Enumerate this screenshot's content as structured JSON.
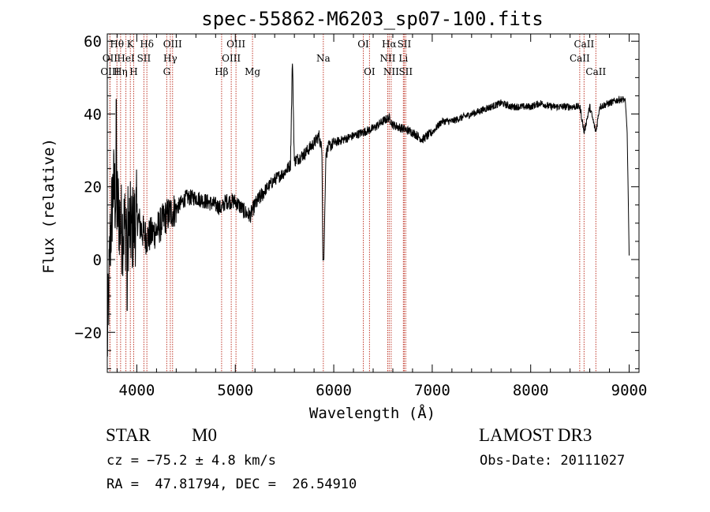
{
  "chart_data": {
    "type": "line",
    "title": "spec-55862-M6203_sp07-100.fits",
    "xlabel": "Wavelength (Å)",
    "ylabel": "Flux (relative)",
    "xlim": [
      3700,
      9100
    ],
    "ylim": [
      -31,
      62
    ],
    "xticks": [
      4000,
      5000,
      6000,
      7000,
      8000,
      9000
    ],
    "yticks": [
      -20,
      0,
      20,
      40,
      60
    ],
    "series": [
      {
        "name": "spectrum",
        "anchors_x": [
          3700,
          3730,
          3760,
          3800,
          3850,
          3900,
          3950,
          4000,
          4050,
          4100,
          4200,
          4300,
          4400,
          4500,
          4600,
          4700,
          4800,
          4861,
          4900,
          5000,
          5100,
          5150,
          5200,
          5300,
          5400,
          5500,
          5560,
          5580,
          5600,
          5700,
          5800,
          5850,
          5880,
          5890,
          5900,
          5920,
          5950,
          6000,
          6100,
          6200,
          6300,
          6400,
          6500,
          6563,
          6600,
          6700,
          6800,
          6900,
          7000,
          7100,
          7200,
          7300,
          7400,
          7500,
          7600,
          7700,
          7800,
          7900,
          8000,
          8100,
          8200,
          8300,
          8400,
          8500,
          8542,
          8600,
          8662,
          8700,
          8800,
          8900,
          8960,
          8980,
          9000
        ],
        "anchors_y": [
          -24,
          5,
          20,
          15,
          8,
          10,
          8,
          12,
          8,
          6,
          8,
          12,
          14,
          17,
          17,
          16,
          15,
          14,
          16,
          16,
          13,
          12,
          15,
          19,
          22,
          24,
          26,
          55,
          27,
          29,
          32,
          34,
          30,
          0,
          0,
          29,
          31,
          32,
          33,
          34,
          35,
          36,
          38,
          39,
          37,
          36,
          35,
          33,
          35,
          38,
          38,
          39,
          40,
          41,
          42,
          43,
          42,
          42,
          42,
          43,
          42,
          42,
          42,
          42,
          35,
          42,
          35,
          42,
          43,
          44,
          44,
          35,
          1
        ]
      }
    ],
    "spectral_lines": [
      {
        "label": "OII",
        "x": 3727,
        "row": 1
      },
      {
        "label": "OIII",
        "x": 3727,
        "row": 2
      },
      {
        "label": "Hθ",
        "x": 3798,
        "row": 0
      },
      {
        "label": "Hη",
        "x": 3835,
        "row": 2
      },
      {
        "label": "HeI",
        "x": 3889,
        "row": 1
      },
      {
        "label": "K",
        "x": 3934,
        "row": 0
      },
      {
        "label": "H",
        "x": 3968,
        "row": 2
      },
      {
        "label": "SII",
        "x": 4072,
        "row": 1
      },
      {
        "label": "Hδ",
        "x": 4102,
        "row": 0
      },
      {
        "label": "G",
        "x": 4304,
        "row": 2
      },
      {
        "label": "Hγ",
        "x": 4340,
        "row": 1
      },
      {
        "label": "OIII",
        "x": 4363,
        "row": 0
      },
      {
        "label": "Hβ",
        "x": 4861,
        "row": 2
      },
      {
        "label": "OIII",
        "x": 4959,
        "row": 1
      },
      {
        "label": "OIII",
        "x": 5007,
        "row": 0
      },
      {
        "label": "Mg",
        "x": 5175,
        "row": 2
      },
      {
        "label": "Na",
        "x": 5894,
        "row": 1
      },
      {
        "label": "OI",
        "x": 6300,
        "row": 0
      },
      {
        "label": "OI",
        "x": 6363,
        "row": 2
      },
      {
        "label": "NII",
        "x": 6548,
        "row": 1
      },
      {
        "label": "Hα",
        "x": 6563,
        "row": 0
      },
      {
        "label": "NII",
        "x": 6583,
        "row": 2
      },
      {
        "label": "Li",
        "x": 6707,
        "row": 1
      },
      {
        "label": "SII",
        "x": 6716,
        "row": 0
      },
      {
        "label": "SII",
        "x": 6731,
        "row": 2
      },
      {
        "label": "CaII",
        "x": 8498,
        "row": 1
      },
      {
        "label": "CaII",
        "x": 8542,
        "row": 0
      },
      {
        "label": "CaII",
        "x": 8662,
        "row": 2
      }
    ]
  },
  "info": {
    "class": "STAR",
    "subclass": "M0",
    "survey": "LAMOST DR3",
    "cz": "cz = −75.2 ± 4.8 km/s",
    "obs_date": "Obs-Date: 20111027",
    "coords": "RA =  47.81794, DEC =  26.54910"
  },
  "colors": {
    "line_marker": "#c0392b",
    "spectrum": "#000000"
  }
}
